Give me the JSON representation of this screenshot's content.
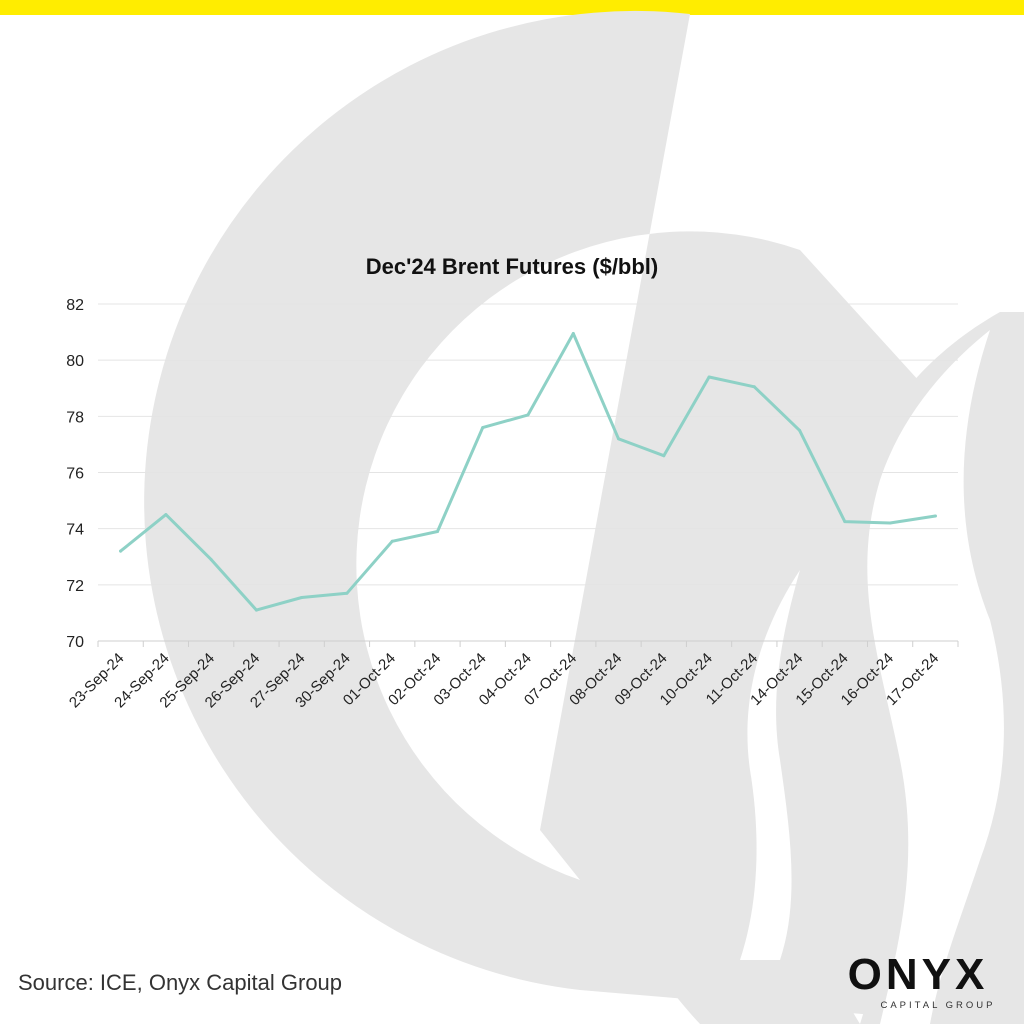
{
  "brand": {
    "accent_color": "#FFED00",
    "line_color": "#8ED1C6",
    "logo_text": "ONYX",
    "logo_subtitle": "CAPITAL GROUP"
  },
  "source": "Source: ICE, Onyx Capital Group",
  "chart_data": {
    "type": "line",
    "title": "Dec'24 Brent Futures ($/bbl)",
    "xlabel": "",
    "ylabel": "",
    "ylim": [
      70,
      82
    ],
    "yticks": [
      70,
      72,
      74,
      76,
      78,
      80,
      82
    ],
    "grid": true,
    "categories": [
      "23-Sep-24",
      "24-Sep-24",
      "25-Sep-24",
      "26-Sep-24",
      "27-Sep-24",
      "30-Sep-24",
      "01-Oct-24",
      "02-Oct-24",
      "03-Oct-24",
      "04-Oct-24",
      "07-Oct-24",
      "08-Oct-24",
      "09-Oct-24",
      "10-Oct-24",
      "11-Oct-24",
      "14-Oct-24",
      "15-Oct-24",
      "16-Oct-24",
      "17-Oct-24"
    ],
    "series": [
      {
        "values": [
          73.2,
          74.5,
          72.9,
          71.1,
          71.55,
          71.7,
          73.55,
          73.9,
          77.6,
          78.05,
          80.95,
          77.2,
          76.6,
          79.4,
          79.05,
          77.5,
          74.25,
          74.2,
          74.45
        ]
      }
    ]
  }
}
